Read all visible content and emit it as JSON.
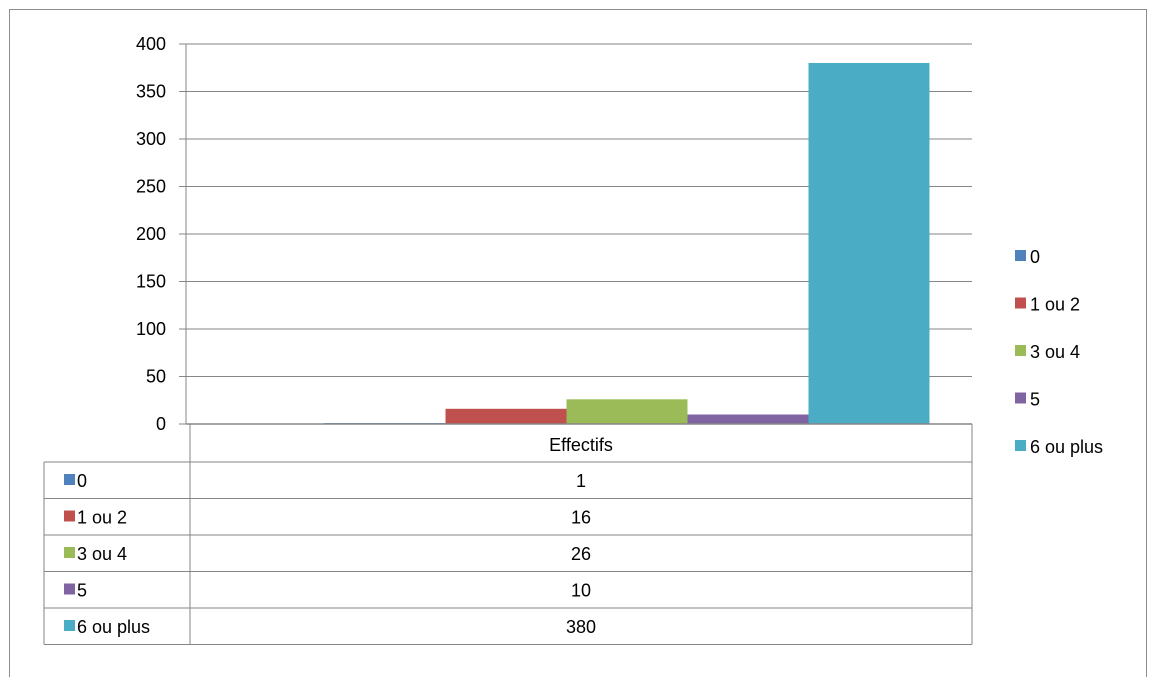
{
  "chart_data": {
    "type": "bar",
    "categories": [
      "Effectifs"
    ],
    "series": [
      {
        "name": "0",
        "values": [
          1
        ],
        "color": "#4f81bd"
      },
      {
        "name": "1 ou 2",
        "values": [
          16
        ],
        "color": "#c0504d"
      },
      {
        "name": "3 ou 4",
        "values": [
          26
        ],
        "color": "#9bbb59"
      },
      {
        "name": "5",
        "values": [
          10
        ],
        "color": "#8064a2"
      },
      {
        "name": "6 ou plus",
        "values": [
          380
        ],
        "color": "#4bacc6"
      }
    ],
    "ylim": [
      0,
      400
    ],
    "yticks": [
      "0",
      "50",
      "100",
      "150",
      "200",
      "250",
      "300",
      "350",
      "400"
    ],
    "grid": true,
    "legend_position": "right",
    "data_table": true
  }
}
